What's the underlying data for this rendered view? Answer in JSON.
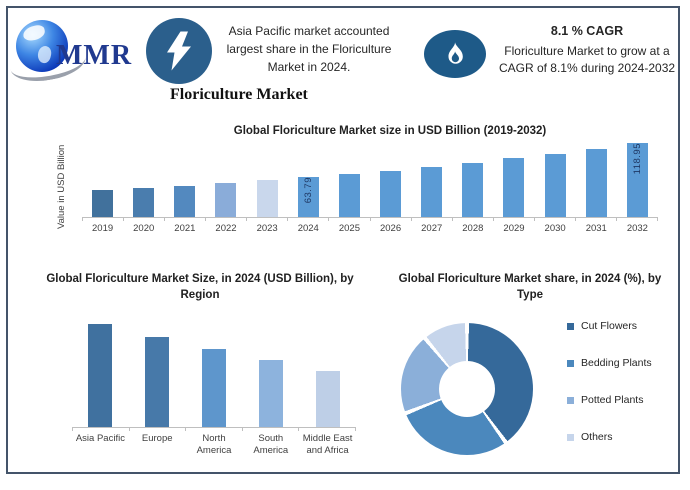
{
  "header": {
    "logo_text": "MMR",
    "highlight": "Asia Pacific market accounted largest share in the Floriculture Market in 2024.",
    "product_title": "Floriculture Market",
    "cagr_title": "8.1 % CAGR",
    "cagr_text": "Floriculture Market to grow at a CAGR of 8.1% during 2024-2032",
    "icons": [
      "globe-logo-icon",
      "lightning-icon",
      "flame-icon"
    ]
  },
  "colors": {
    "frame_border": "#44546A",
    "lightning_badge": "#2B5F8C",
    "flame_badge": "#1E5A88",
    "logo_navy": "#20398F",
    "bar_default": "#5B9BD5",
    "data_label_navy": "#1F3864",
    "axis_gray": "#BFBFBF"
  },
  "chart_data": [
    {
      "id": "market-size",
      "type": "bar",
      "title": "Global Floriculture Market size in USD Billion (2019-2032)",
      "xlabel": "",
      "ylabel": "Value in USD Billion",
      "ylim": [
        0,
        130
      ],
      "grid": false,
      "categories": [
        "2019",
        "2020",
        "2021",
        "2022",
        "2023",
        "2024",
        "2025",
        "2026",
        "2027",
        "2028",
        "2029",
        "2030",
        "2031",
        "2032"
      ],
      "values": [
        43.21,
        46.71,
        50.5,
        54.59,
        59.01,
        63.79,
        68.96,
        74.54,
        80.58,
        87.11,
        94.16,
        101.79,
        110.04,
        118.95
      ],
      "data_labels": {
        "2024": "63.79",
        "2032": "118.95"
      },
      "bar_colors": [
        "#41719C",
        "#4A7DAE",
        "#5389BF",
        "#8AACD9",
        "#C9D7EC",
        "#5B9BD5",
        "#5B9BD5",
        "#5B9BD5",
        "#5B9BD5",
        "#5B9BD5",
        "#5B9BD5",
        "#5B9BD5",
        "#5B9BD5",
        "#5B9BD5"
      ]
    },
    {
      "id": "by-region",
      "type": "bar",
      "title": "Global Floriculture Market Size, in 2024 (USD Billion), by Region",
      "xlabel": "",
      "ylabel": "",
      "grid": false,
      "categories": [
        "Asia Pacific",
        "Europe",
        "North America",
        "South America",
        "Middle East and Africa"
      ],
      "values": [
        16.7,
        14.6,
        12.7,
        10.8,
        9.0
      ],
      "bar_colors": [
        "#40719F",
        "#4779A9",
        "#5E96CC",
        "#8DB3DD",
        "#BECFE7"
      ]
    },
    {
      "id": "by-type",
      "type": "pie",
      "donut": true,
      "title": "Global Floriculture Market share, in 2024 (%), by Type",
      "legend_position": "right",
      "legend": [
        "Cut Flowers",
        "Bedding Plants",
        "Potted Plants",
        "Others"
      ],
      "values": [
        40,
        29,
        20,
        11
      ],
      "colors": [
        "#35699A",
        "#4B88BD",
        "#8BAFD9",
        "#C6D5EB"
      ]
    }
  ]
}
